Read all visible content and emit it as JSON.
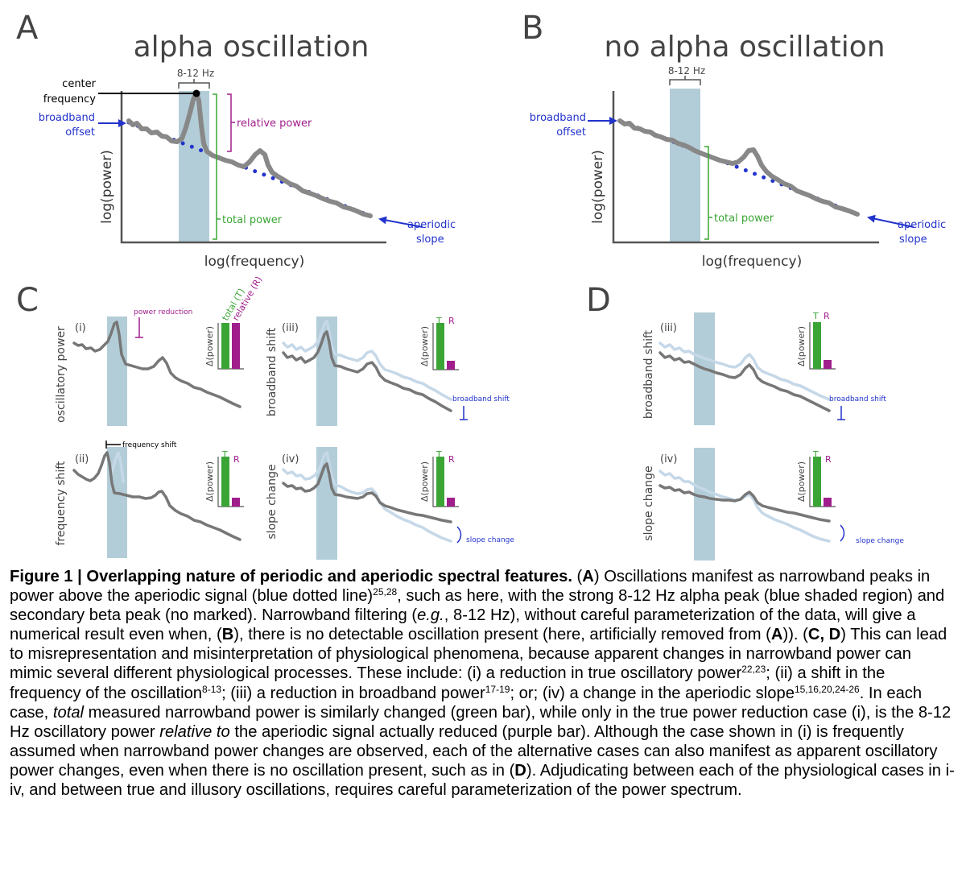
{
  "figure": {
    "panel_letters": {
      "a": "A",
      "b": "B",
      "c": "C",
      "d": "D"
    },
    "panel_a": {
      "title": "alpha oscillation",
      "band_label": "8-12 Hz",
      "center_frequency_line1": "center",
      "center_frequency_line2": "frequency",
      "broadband_offset_line1": "broadband",
      "broadband_offset_line2": "offset",
      "relative_power": "relative power",
      "total_power": "total power",
      "aperiodic_line1": "aperiodic",
      "aperiodic_line2": "slope",
      "y_label": "log(power)",
      "x_label": "log(frequency)"
    },
    "panel_b": {
      "title": "no alpha oscillation",
      "band_label": "8-12 Hz",
      "broadband_offset_line1": "broadband",
      "broadband_offset_line2": "offset",
      "total_power": "total power",
      "aperiodic_line1": "aperiodic",
      "aperiodic_line2": "slope",
      "y_label": "log(power)",
      "x_label": "log(frequency)"
    },
    "subpanels": {
      "c1": {
        "numeral": "(i)",
        "ylabel": "oscillatory power",
        "annotation": "power reduction",
        "bar_t_label": "total (T)",
        "bar_r_label": "relative (R)",
        "delta_label": "Δ(power)",
        "bar_t_value": 1.0,
        "bar_r_value": 0.96
      },
      "c2": {
        "numeral": "(ii)",
        "ylabel": "frequency shift",
        "annotation": "frequency shift",
        "bar_t_label": "T",
        "bar_r_label": "R",
        "delta_label": "Δ(power)",
        "bar_t_value": 1.0,
        "bar_r_value": 0.18
      },
      "c3": {
        "numeral": "(iii)",
        "ylabel": "broadband shift",
        "annotation": "broadband shift",
        "bar_t_label": "T",
        "bar_r_label": "R",
        "delta_label": "Δ(power)",
        "bar_t_value": 1.0,
        "bar_r_value": 0.18
      },
      "c4": {
        "numeral": "(iv)",
        "ylabel": "slope change",
        "annotation": "slope change",
        "bar_t_label": "T",
        "bar_r_label": "R",
        "delta_label": "Δ(power)",
        "bar_t_value": 1.0,
        "bar_r_value": 0.18
      },
      "d3": {
        "numeral": "(iii)",
        "ylabel": "broadband shift",
        "annotation": "broadband shift",
        "bar_t_label": "T",
        "bar_r_label": "R",
        "delta_label": "Δ(power)",
        "bar_t_value": 1.0,
        "bar_r_value": 0.18
      },
      "d4": {
        "numeral": "(iv)",
        "ylabel": "slope change",
        "annotation": "slope change",
        "bar_t_label": "T",
        "bar_r_label": "R",
        "delta_label": "Δ(power)",
        "bar_t_value": 1.0,
        "bar_r_value": 0.18
      }
    },
    "colors": {
      "spectrum": "#888888",
      "spectrum_light": "#c5d8e8",
      "band": "#b3cdd8",
      "aperiodic": "#2233cc",
      "total": "#3aa535",
      "relative": "#a01e8c"
    }
  },
  "caption": {
    "heading": "Figure 1 | Overlapping nature of periodic and aperiodic spectral features.",
    "s1": " (",
    "s2": "A",
    "s3": ") Oscillations manifest as narrowband peaks in power above the aperiodic signal (blue dotted line)",
    "sup1": "25,28",
    "s4": ", such as here, with the strong 8-12 Hz alpha peak (blue shaded region) and secondary beta peak (no marked). Narrowband filtering (",
    "i1": "e.g.",
    "s5": ", 8-12 Hz), without careful parameterization of the data, will give a numerical result even when, (",
    "s6": "B",
    "s7": "), there is no detectable oscillation present (here, artificially removed from (",
    "s8": "A",
    "s9": ")). (",
    "s10": "C, D",
    "s11": ") This can lead to misrepresentation and misinterpretation of physiological phenomena, because apparent changes in narrowband power can mimic several different physiological processes. These include: (i) a reduction in true oscillatory power",
    "sup2": "22,23",
    "s12": "; (ii) a shift in the frequency of the oscillation",
    "sup3": "8-13",
    "s13": "; (iii) a reduction in broadband power",
    "sup4": "17-19",
    "s14": "; or; (iv) a change in the aperiodic slope",
    "sup5": "15,16,20,24-26",
    "s15": ". In each case, ",
    "i2": "total",
    "s16": " measured narrowband power is similarly changed (green bar), while only in the true power reduction case (i), is the 8-12 Hz oscillatory power ",
    "i3": "relative to",
    "s17": " the aperiodic signal actually reduced (purple bar). Although the case shown in (i) is frequently assumed when narrowband power changes are observed, each of the alternative cases can also manifest as apparent oscillatory power changes, even when there is no oscillation present, such as in (",
    "s18": "D",
    "s19": "). Adjudicating between each of the physiological cases in i-iv, and between true and illusory oscillations, requires careful parameterization of the power spectrum."
  }
}
